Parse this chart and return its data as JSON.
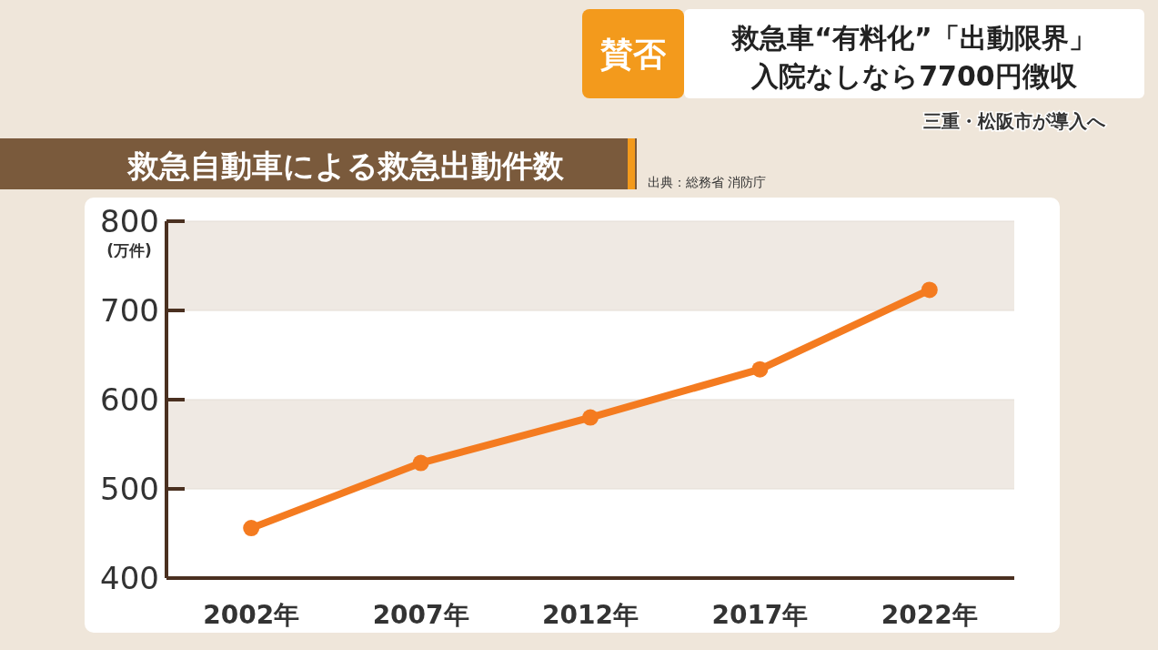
{
  "chart_data": {
    "type": "line",
    "title": "救急自動車による救急出動件数",
    "ylabel": "(万件)",
    "annotations": [
      "出典：総務省 消防庁",
      "賛否",
      "救急車“有料化”「出動限界」",
      "入院なしなら7700円徴収",
      "三重・松阪市が導入へ"
    ],
    "categories": [
      "2002年",
      "2007年",
      "2012年",
      "2017年",
      "2022年"
    ],
    "series": [
      {
        "color": "#f47b20",
        "values": [
          456,
          529,
          580,
          634,
          723
        ]
      }
    ],
    "ylim": [
      400,
      800
    ],
    "yticks": [
      400,
      500,
      600,
      700,
      800
    ],
    "grid": "y",
    "marker": "circle",
    "line_style": "solid"
  }
}
